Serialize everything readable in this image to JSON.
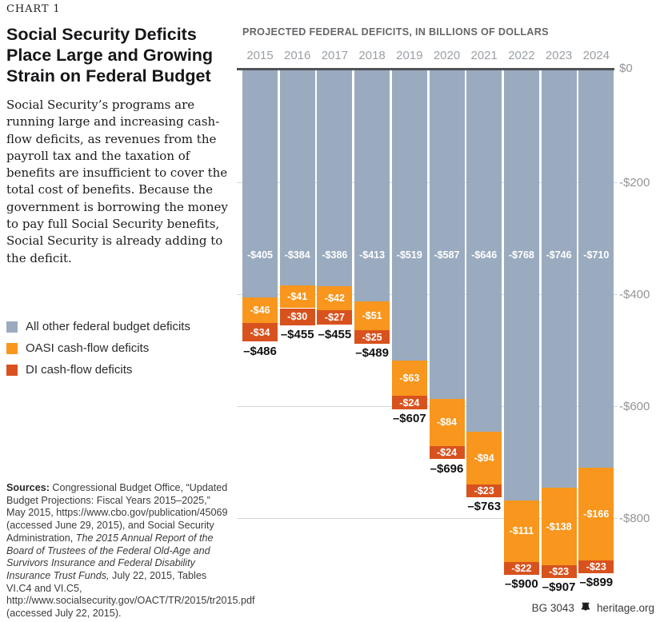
{
  "left": {
    "chart_label": "CHART 1",
    "title_lines": [
      "Social Security Deficits",
      "Place Large and Growing",
      "Strain on Federal Budget"
    ],
    "intro": "Social Security’s programs are running large and increasing cash-flow deficits, as revenues from the payroll tax and the taxation of benefits are insufficient to cover the total cost of benefits. Because the government is borrowing the money to pay full Social Security benefits, Social Security is already adding to the deficit."
  },
  "legend": [
    {
      "label": "All other federal budget deficits",
      "color": "#9aabbf"
    },
    {
      "label": "OASI cash-flow deficits",
      "color": "#f8961d"
    },
    {
      "label": "DI cash-flow deficits",
      "color": "#d8521e"
    }
  ],
  "chart_data": {
    "type": "bar",
    "stacked": true,
    "title": "PROJECTED FEDERAL DEFICITS, IN BILLIONS OF DOLLARS",
    "categories": [
      "2015",
      "2016",
      "2017",
      "2018",
      "2019",
      "2020",
      "2021",
      "2022",
      "2023",
      "2024"
    ],
    "series": [
      {
        "name": "All other federal budget deficits",
        "color": "#9aabbf",
        "values": [
          -405,
          -384,
          -386,
          -413,
          -519,
          -587,
          -646,
          -768,
          -746,
          -710
        ]
      },
      {
        "name": "OASI cash-flow deficits",
        "color": "#f8961d",
        "values": [
          -46,
          -41,
          -42,
          -51,
          -63,
          -84,
          -94,
          -111,
          -138,
          -166
        ]
      },
      {
        "name": "DI cash-flow deficits",
        "color": "#d8521e",
        "values": [
          -34,
          -30,
          -27,
          -25,
          -24,
          -24,
          -23,
          -22,
          -23,
          -23
        ]
      }
    ],
    "totals": [
      -486,
      -455,
      -455,
      -489,
      -607,
      -696,
      -763,
      -900,
      -907,
      -899
    ],
    "y_ticks": [
      0,
      -200,
      -400,
      -600,
      -800
    ],
    "y_tick_labels": [
      "$0",
      "-$200",
      "-$400",
      "-$600",
      "-$800"
    ],
    "ylim": [
      -950,
      0
    ],
    "grid": true,
    "legend_position": "left"
  },
  "sources": {
    "label": "Sources:",
    "part1": " Congressional Budget Office, “Updated Budget Projections: Fiscal Years 2015–2025,” May 2015, https://www.cbo.gov/publication/45069 (accessed June 29, 2015), and Social Security Administration, ",
    "italic": "The 2015 Annual Report of the Board of Trustees of the Federal Old-Age and Survivors Insurance and Federal Disability Insurance Trust Funds,",
    "part2": " July 22, 2015, Tables VI.C4 and VI.C5, http://www.socialsecurity.gov/OACT/TR/2015/tr2015.pdf (accessed July 22, 2015)."
  },
  "footer": {
    "doc_id": "BG 3043",
    "site": "heritage.org"
  }
}
